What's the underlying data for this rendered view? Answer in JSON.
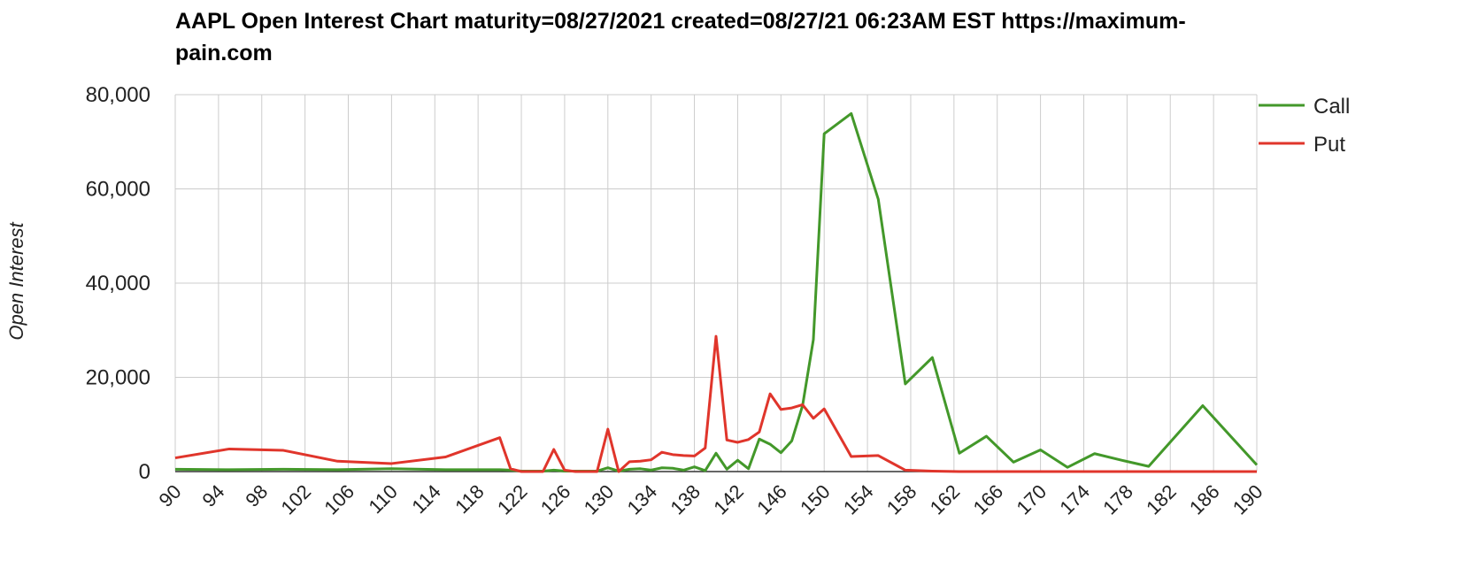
{
  "chart_data": {
    "type": "line",
    "title": "AAPL Open Interest Chart maturity=08/27/2021 created=08/27/21 06:23AM EST https://maximum-pain.com",
    "y_label": "Open Interest",
    "x": [
      90,
      95,
      100,
      105,
      110,
      115,
      120,
      121,
      122,
      124,
      125,
      126,
      127,
      129,
      130,
      131,
      132,
      133,
      134,
      135,
      136,
      137,
      138,
      139,
      140,
      141,
      142,
      143,
      144,
      145,
      146,
      147,
      148,
      149,
      150,
      152.5,
      155,
      157.5,
      160,
      162.5,
      165,
      167.5,
      170,
      172.5,
      175,
      177.5,
      180,
      185,
      190
    ],
    "series": [
      {
        "name": "Call",
        "color": "#43982a",
        "values": [
          500,
          400,
          500,
          400,
          600,
          400,
          400,
          300,
          100,
          100,
          300,
          100,
          100,
          100,
          800,
          100,
          500,
          600,
          300,
          800,
          700,
          300,
          1000,
          200,
          3900,
          500,
          2400,
          600,
          6900,
          5800,
          4000,
          6500,
          14000,
          28000,
          71700,
          76000,
          57800,
          18600,
          24200,
          3900,
          7500,
          2000,
          4600,
          900,
          3800,
          2400,
          1100,
          14000,
          1400
        ]
      },
      {
        "name": "Put",
        "color": "#e0352b",
        "values": [
          2900,
          4800,
          4500,
          2200,
          1700,
          3100,
          7200,
          600,
          0,
          0,
          4700,
          300,
          0,
          0,
          9000,
          0,
          2100,
          2200,
          2500,
          4100,
          3600,
          3400,
          3300,
          5000,
          28700,
          6700,
          6200,
          6800,
          8400,
          16500,
          13200,
          13500,
          14200,
          11300,
          13300,
          3200,
          3400,
          300,
          100,
          0,
          0,
          0,
          0,
          0,
          0,
          0,
          0,
          0,
          0
        ]
      }
    ],
    "xlim": [
      90,
      190
    ],
    "xticks": [
      90,
      94,
      98,
      102,
      106,
      110,
      114,
      118,
      122,
      126,
      130,
      134,
      138,
      142,
      146,
      150,
      154,
      158,
      162,
      166,
      170,
      174,
      178,
      182,
      186,
      190
    ],
    "ylim": [
      0,
      80000
    ],
    "yticks": [
      0,
      {
        "value": 20000,
        "label": "20,000"
      },
      {
        "value": 40000,
        "label": "40,000"
      },
      {
        "value": 60000,
        "label": "60,000"
      },
      {
        "value": 80000,
        "label": "80,000"
      }
    ],
    "grid": true,
    "legend": "right"
  }
}
